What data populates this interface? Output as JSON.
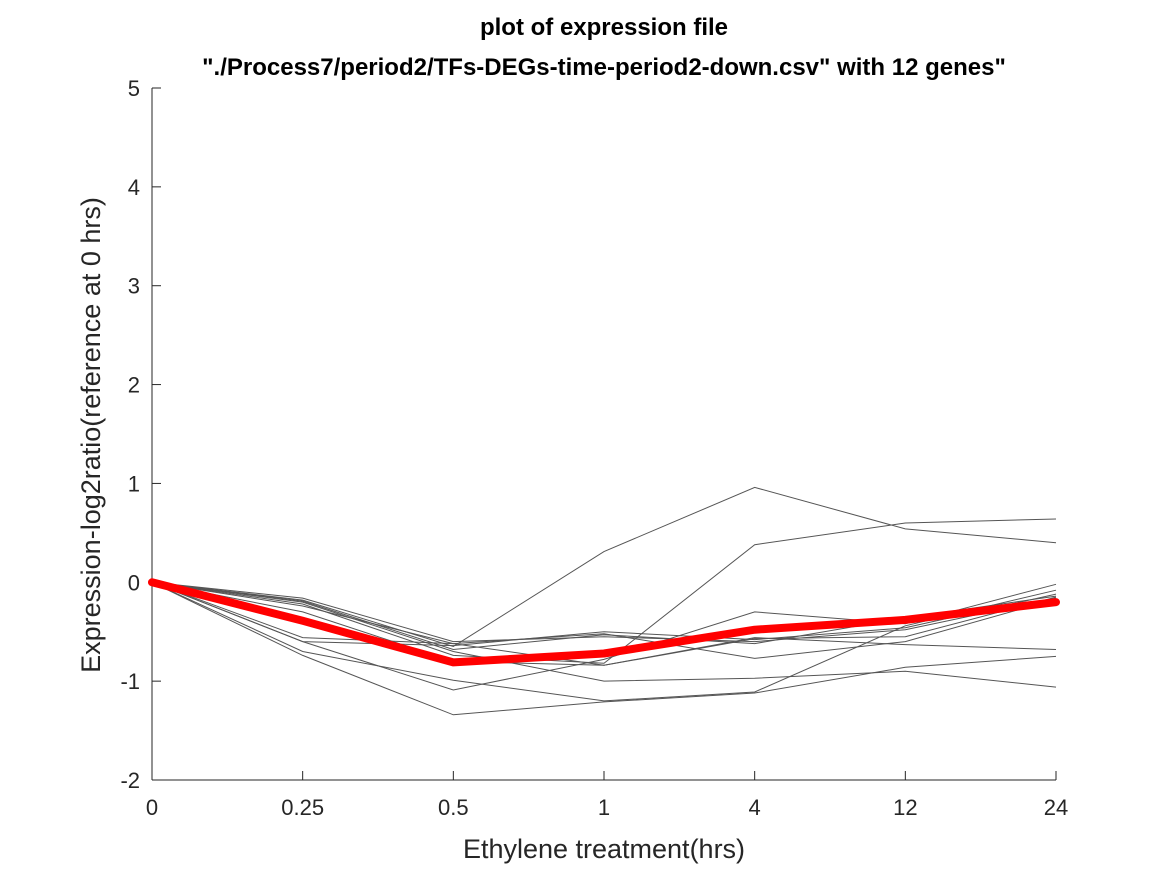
{
  "chart_data": {
    "type": "line",
    "title_lines": [
      "plot of expression file",
      "\"./Process7/period2/TFs-DEGs-time-period2-down.csv\" with 12 genes\""
    ],
    "xlabel": "Ethylene treatment(hrs)",
    "ylabel": "Expression-log2ratio(reference at 0 hrs)",
    "categories": [
      "0",
      "0.25",
      "0.5",
      "1",
      "4",
      "12",
      "24"
    ],
    "ylim": [
      -2,
      5
    ],
    "yticks": [
      -2,
      -1,
      0,
      1,
      2,
      3,
      4,
      5
    ],
    "ytick_labels": [
      "-2",
      "-1",
      "0",
      "1",
      "2",
      "3",
      "4",
      "5"
    ],
    "grid": false,
    "box": "left-bottom",
    "series": [
      {
        "values": [
          0,
          -0.18,
          -0.65,
          0.31,
          0.96,
          0.54,
          0.4
        ],
        "color": "#555555"
      },
      {
        "values": [
          0,
          -0.22,
          -0.74,
          -0.82,
          0.38,
          0.6,
          0.64
        ],
        "color": "#555555"
      },
      {
        "values": [
          0,
          -0.6,
          -1.09,
          -0.78,
          -0.3,
          -0.42,
          -0.02
        ],
        "color": "#555555"
      },
      {
        "values": [
          0,
          -0.24,
          -0.62,
          -0.84,
          -0.56,
          -0.63,
          -0.68
        ],
        "color": "#555555"
      },
      {
        "values": [
          0,
          -0.6,
          -0.64,
          -0.5,
          -0.58,
          -0.46,
          -0.12
        ],
        "color": "#555555"
      },
      {
        "values": [
          0,
          -0.74,
          -1.34,
          -1.21,
          -1.12,
          -0.86,
          -0.75
        ],
        "color": "#555555"
      },
      {
        "values": [
          0,
          -0.7,
          -0.99,
          -1.2,
          -1.11,
          -0.44,
          -0.08
        ],
        "color": "#555555"
      },
      {
        "values": [
          0,
          -0.56,
          -0.62,
          -0.52,
          -0.77,
          -0.6,
          -0.17
        ],
        "color": "#555555"
      },
      {
        "values": [
          0,
          -0.2,
          -0.7,
          -1.0,
          -0.97,
          -0.9,
          -1.06
        ],
        "color": "#555555"
      },
      {
        "values": [
          0,
          -0.16,
          -0.6,
          -0.55,
          -0.6,
          -0.48,
          -0.16
        ],
        "color": "#555555"
      },
      {
        "values": [
          0,
          -0.3,
          -0.8,
          -0.84,
          -0.57,
          -0.55,
          -0.15
        ],
        "color": "#555555"
      },
      {
        "values": [
          0,
          -0.19,
          -0.68,
          -0.53,
          -0.62,
          -0.36,
          -0.14
        ],
        "color": "#555555"
      }
    ],
    "mean_series": {
      "values": [
        0,
        -0.39,
        -0.81,
        -0.72,
        -0.48,
        -0.38,
        -0.2
      ],
      "color": "#ff0000"
    }
  }
}
